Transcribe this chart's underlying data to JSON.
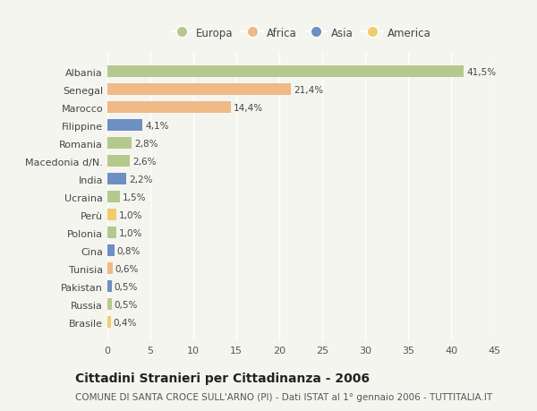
{
  "countries": [
    "Albania",
    "Senegal",
    "Marocco",
    "Filippine",
    "Romania",
    "Macedonia d/N.",
    "India",
    "Ucraina",
    "Perù",
    "Polonia",
    "Cina",
    "Tunisia",
    "Pakistan",
    "Russia",
    "Brasile"
  ],
  "values": [
    41.5,
    21.4,
    14.4,
    4.1,
    2.8,
    2.6,
    2.2,
    1.5,
    1.0,
    1.0,
    0.8,
    0.6,
    0.5,
    0.5,
    0.4
  ],
  "labels": [
    "41,5%",
    "21,4%",
    "14,4%",
    "4,1%",
    "2,8%",
    "2,6%",
    "2,2%",
    "1,5%",
    "1,0%",
    "1,0%",
    "0,8%",
    "0,6%",
    "0,5%",
    "0,5%",
    "0,4%"
  ],
  "continents": [
    "Europa",
    "Africa",
    "Africa",
    "Asia",
    "Europa",
    "Europa",
    "Asia",
    "Europa",
    "America",
    "Europa",
    "Asia",
    "Africa",
    "Asia",
    "Europa",
    "America"
  ],
  "continent_colors": {
    "Europa": "#b5c98e",
    "Africa": "#f0b986",
    "Asia": "#6d8fc4",
    "America": "#f0cc6e"
  },
  "legend_items": [
    "Europa",
    "Africa",
    "Asia",
    "America"
  ],
  "xlim": [
    0,
    45
  ],
  "xticks": [
    0,
    5,
    10,
    15,
    20,
    25,
    30,
    35,
    40,
    45
  ],
  "title": "Cittadini Stranieri per Cittadinanza - 2006",
  "subtitle": "COMUNE DI SANTA CROCE SULL'ARNO (PI) - Dati ISTAT al 1° gennaio 2006 - TUTTITALIA.IT",
  "bg_color": "#f5f5f0",
  "bar_height": 0.65,
  "label_fontsize": 7.5,
  "axis_fontsize": 8,
  "title_fontsize": 10,
  "subtitle_fontsize": 7.5
}
